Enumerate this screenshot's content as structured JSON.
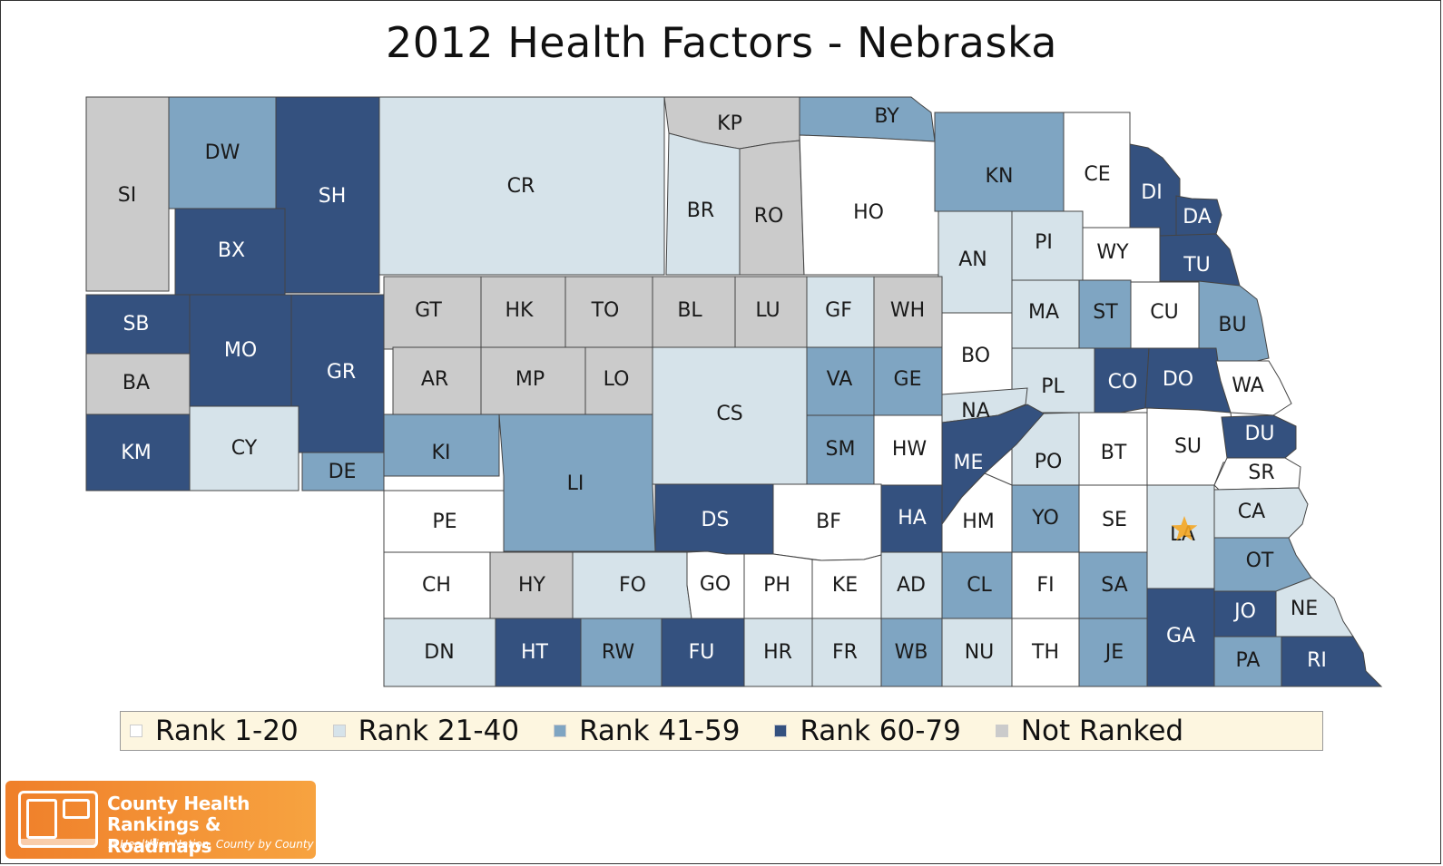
{
  "title": "2012 Health Factors - Nebraska",
  "colors": {
    "rank_1_20": "#ffffff",
    "rank_21_40": "#d6e3ea",
    "rank_41_59": "#7fa5c2",
    "rank_60_79": "#34517f",
    "not_ranked": "#cbcbcb"
  },
  "legend": [
    {
      "key": "rank_1_20",
      "label": "Rank 1-20"
    },
    {
      "key": "rank_21_40",
      "label": "Rank 21-40"
    },
    {
      "key": "rank_41_59",
      "label": "Rank 41-59"
    },
    {
      "key": "rank_60_79",
      "label": "Rank 60-79"
    },
    {
      "key": "not_ranked",
      "label": "Not Ranked"
    }
  ],
  "counties": [
    {
      "code": "SI",
      "cat": "not_ranked"
    },
    {
      "code": "DW",
      "cat": "rank_41_59"
    },
    {
      "code": "SH",
      "cat": "rank_60_79"
    },
    {
      "code": "CR",
      "cat": "rank_21_40"
    },
    {
      "code": "KP",
      "cat": "not_ranked"
    },
    {
      "code": "BY",
      "cat": "rank_41_59"
    },
    {
      "code": "BR",
      "cat": "rank_21_40"
    },
    {
      "code": "RO",
      "cat": "not_ranked"
    },
    {
      "code": "HO",
      "cat": "rank_1_20"
    },
    {
      "code": "KN",
      "cat": "rank_41_59"
    },
    {
      "code": "CE",
      "cat": "rank_1_20"
    },
    {
      "code": "DI",
      "cat": "rank_60_79"
    },
    {
      "code": "DA",
      "cat": "rank_60_79"
    },
    {
      "code": "BX",
      "cat": "rank_60_79"
    },
    {
      "code": "AN",
      "cat": "rank_21_40"
    },
    {
      "code": "PI",
      "cat": "rank_21_40"
    },
    {
      "code": "WY",
      "cat": "rank_1_20"
    },
    {
      "code": "TU",
      "cat": "rank_60_79"
    },
    {
      "code": "SB",
      "cat": "rank_60_79"
    },
    {
      "code": "MO",
      "cat": "rank_60_79"
    },
    {
      "code": "GR",
      "cat": "rank_60_79"
    },
    {
      "code": "GT",
      "cat": "not_ranked"
    },
    {
      "code": "HK",
      "cat": "not_ranked"
    },
    {
      "code": "TO",
      "cat": "not_ranked"
    },
    {
      "code": "BL",
      "cat": "not_ranked"
    },
    {
      "code": "LU",
      "cat": "not_ranked"
    },
    {
      "code": "GF",
      "cat": "rank_21_40"
    },
    {
      "code": "WH",
      "cat": "not_ranked"
    },
    {
      "code": "MA",
      "cat": "rank_21_40"
    },
    {
      "code": "ST",
      "cat": "rank_41_59"
    },
    {
      "code": "CU",
      "cat": "rank_1_20"
    },
    {
      "code": "BU",
      "cat": "rank_41_59"
    },
    {
      "code": "BA",
      "cat": "not_ranked"
    },
    {
      "code": "AR",
      "cat": "not_ranked"
    },
    {
      "code": "MP",
      "cat": "not_ranked"
    },
    {
      "code": "LO",
      "cat": "not_ranked"
    },
    {
      "code": "BO",
      "cat": "rank_1_20"
    },
    {
      "code": "VA",
      "cat": "rank_41_59"
    },
    {
      "code": "GE",
      "cat": "rank_41_59"
    },
    {
      "code": "PL",
      "cat": "rank_21_40"
    },
    {
      "code": "CO",
      "cat": "rank_60_79"
    },
    {
      "code": "DO",
      "cat": "rank_60_79"
    },
    {
      "code": "WA",
      "cat": "rank_1_20"
    },
    {
      "code": "CS",
      "cat": "rank_21_40"
    },
    {
      "code": "NA",
      "cat": "rank_21_40"
    },
    {
      "code": "KM",
      "cat": "rank_60_79"
    },
    {
      "code": "CY",
      "cat": "rank_21_40"
    },
    {
      "code": "KI",
      "cat": "rank_41_59"
    },
    {
      "code": "SM",
      "cat": "rank_41_59"
    },
    {
      "code": "HW",
      "cat": "rank_1_20"
    },
    {
      "code": "PO",
      "cat": "rank_21_40"
    },
    {
      "code": "BT",
      "cat": "rank_1_20"
    },
    {
      "code": "SU",
      "cat": "rank_1_20"
    },
    {
      "code": "DU",
      "cat": "rank_60_79"
    },
    {
      "code": "ME",
      "cat": "rank_60_79"
    },
    {
      "code": "DE",
      "cat": "rank_41_59"
    },
    {
      "code": "LI",
      "cat": "rank_41_59"
    },
    {
      "code": "SR",
      "cat": "rank_1_20"
    },
    {
      "code": "PE",
      "cat": "rank_1_20"
    },
    {
      "code": "DS",
      "cat": "rank_60_79"
    },
    {
      "code": "BF",
      "cat": "rank_1_20"
    },
    {
      "code": "HA",
      "cat": "rank_60_79"
    },
    {
      "code": "HM",
      "cat": "rank_1_20"
    },
    {
      "code": "YO",
      "cat": "rank_41_59"
    },
    {
      "code": "SE",
      "cat": "rank_1_20"
    },
    {
      "code": "LA",
      "cat": "rank_21_40"
    },
    {
      "code": "CA",
      "cat": "rank_21_40"
    },
    {
      "code": "CH",
      "cat": "rank_1_20"
    },
    {
      "code": "HY",
      "cat": "not_ranked"
    },
    {
      "code": "FO",
      "cat": "rank_21_40"
    },
    {
      "code": "GO",
      "cat": "rank_1_20"
    },
    {
      "code": "PH",
      "cat": "rank_1_20"
    },
    {
      "code": "KE",
      "cat": "rank_1_20"
    },
    {
      "code": "AD",
      "cat": "rank_21_40"
    },
    {
      "code": "CL",
      "cat": "rank_41_59"
    },
    {
      "code": "FI",
      "cat": "rank_1_20"
    },
    {
      "code": "SA",
      "cat": "rank_41_59"
    },
    {
      "code": "OT",
      "cat": "rank_41_59"
    },
    {
      "code": "JO",
      "cat": "rank_60_79"
    },
    {
      "code": "NE",
      "cat": "rank_21_40"
    },
    {
      "code": "GA",
      "cat": "rank_60_79"
    },
    {
      "code": "DN",
      "cat": "rank_21_40"
    },
    {
      "code": "HT",
      "cat": "rank_60_79"
    },
    {
      "code": "RW",
      "cat": "rank_41_59"
    },
    {
      "code": "FU",
      "cat": "rank_60_79"
    },
    {
      "code": "HR",
      "cat": "rank_21_40"
    },
    {
      "code": "FR",
      "cat": "rank_21_40"
    },
    {
      "code": "WB",
      "cat": "rank_41_59"
    },
    {
      "code": "NU",
      "cat": "rank_21_40"
    },
    {
      "code": "TH",
      "cat": "rank_1_20"
    },
    {
      "code": "JE",
      "cat": "rank_41_59"
    },
    {
      "code": "PA",
      "cat": "rank_41_59"
    },
    {
      "code": "RI",
      "cat": "rank_60_79"
    }
  ],
  "marker": {
    "county": "LA",
    "icon": "star-icon",
    "color": "#f5a623"
  },
  "logo": {
    "line1": "County Health",
    "line2": "Rankings & Roadmaps",
    "tagline": "A Healthier Nation, County by County"
  }
}
